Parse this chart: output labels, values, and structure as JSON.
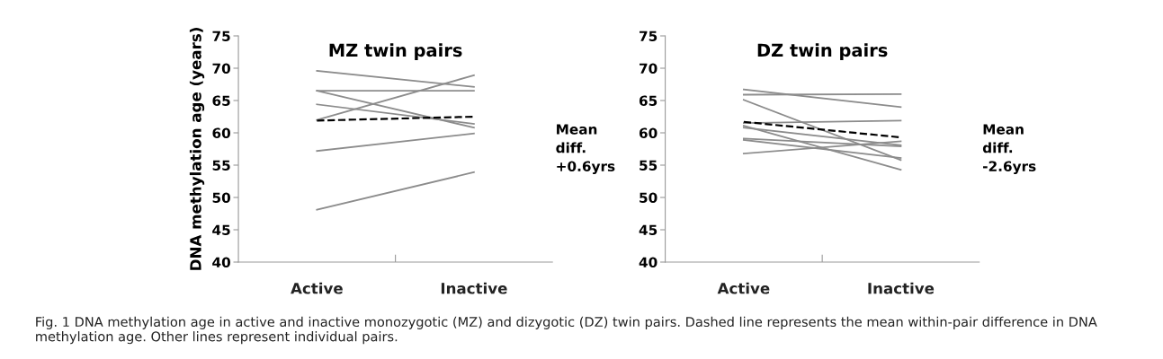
{
  "chart_data": [
    {
      "type": "line",
      "title": "MZ twin pairs",
      "ylabel": "DNA methylation age (years)",
      "categories": [
        "Active",
        "Inactive"
      ],
      "ylim": [
        40,
        75
      ],
      "yticks": [
        40,
        45,
        50,
        55,
        60,
        65,
        70,
        75
      ],
      "grid": false,
      "legend": false,
      "marker": "none",
      "series": [
        {
          "color": "#8c8c8c",
          "values": [
            69.6,
            67.1
          ]
        },
        {
          "color": "#8c8c8c",
          "values": [
            66.5,
            66.5
          ]
        },
        {
          "color": "#8c8c8c",
          "values": [
            66.5,
            60.8
          ]
        },
        {
          "color": "#8c8c8c",
          "values": [
            64.4,
            61.4
          ]
        },
        {
          "color": "#8c8c8c",
          "values": [
            62.0,
            68.9
          ]
        },
        {
          "color": "#8c8c8c",
          "values": [
            57.2,
            59.9
          ]
        },
        {
          "color": "#8c8c8c",
          "values": [
            48.1,
            53.9
          ]
        },
        {
          "color": "#000000",
          "line_style": "dashed",
          "values": [
            61.9,
            62.5
          ]
        }
      ],
      "annotations": [
        "Mean\ndiff.\n+0.6yrs",
        "Fig. 1 DNA methylation age in active and inactive monozygotic (MZ) and dizygotic (DZ) twin pairs. Dashed line represents the mean within-pair difference in DNA methylation age. Other lines represent individual pairs."
      ]
    },
    {
      "type": "line",
      "title": "DZ twin pairs",
      "categories": [
        "Active",
        "Inactive"
      ],
      "ylim": [
        40,
        75
      ],
      "yticks": [
        40,
        45,
        50,
        55,
        60,
        65,
        70,
        75
      ],
      "grid": false,
      "legend": false,
      "marker": "none",
      "series": [
        {
          "color": "#8c8c8c",
          "values": [
            66.7,
            64.0
          ]
        },
        {
          "color": "#8c8c8c",
          "values": [
            65.9,
            66.0
          ]
        },
        {
          "color": "#8c8c8c",
          "values": [
            65.1,
            55.8
          ]
        },
        {
          "color": "#8c8c8c",
          "values": [
            61.5,
            61.9
          ]
        },
        {
          "color": "#8c8c8c",
          "values": [
            61.1,
            54.3
          ]
        },
        {
          "color": "#8c8c8c",
          "values": [
            60.8,
            58.1
          ]
        },
        {
          "color": "#8c8c8c",
          "values": [
            59.1,
            57.9
          ]
        },
        {
          "color": "#8c8c8c",
          "values": [
            58.9,
            56.1
          ]
        },
        {
          "color": "#8c8c8c",
          "values": [
            56.8,
            58.7
          ]
        },
        {
          "color": "#000000",
          "line_style": "dashed",
          "values": [
            61.7,
            59.3
          ]
        }
      ],
      "annotations": [
        "Mean\ndiff.\n-2.6yrs"
      ]
    }
  ]
}
